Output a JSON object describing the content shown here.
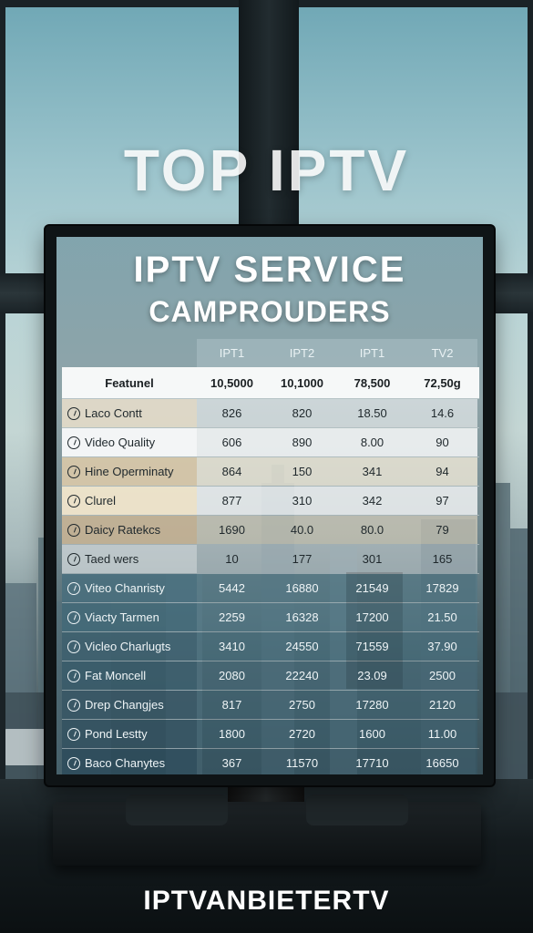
{
  "headline": "TOP IPTV",
  "screen_title_1": "IPTV SERVICE",
  "screen_title_2": "CAMPROUDERS",
  "table": {
    "columns": [
      "",
      "IPT1",
      "IPT2",
      "IPT1",
      "TV2"
    ],
    "subheader": [
      "Featunel",
      "10,5000",
      "10,1000",
      "78,500",
      "72,50g"
    ],
    "rows": [
      {
        "label": "Laco Contt",
        "values": [
          "826",
          "820",
          "18.50",
          "14.6"
        ]
      },
      {
        "label": "Video Quality",
        "values": [
          "606",
          "890",
          "8.00",
          "90"
        ]
      },
      {
        "label": "Hine Operminaty",
        "values": [
          "864",
          "150",
          "341",
          "94"
        ]
      },
      {
        "label": "Clurel",
        "values": [
          "877",
          "310",
          "342",
          "97"
        ]
      },
      {
        "label": "Daicy Ratekcs",
        "values": [
          "1690",
          "40.0",
          "80.0",
          "79"
        ]
      },
      {
        "label": "Taed wers",
        "values": [
          "10",
          "177",
          "301",
          "165"
        ]
      },
      {
        "label": "Viteo Chanristy",
        "values": [
          "5442",
          "16880",
          "21549",
          "17829"
        ]
      },
      {
        "label": "Viacty Tarmen",
        "values": [
          "2259",
          "16328",
          "17200",
          "21.50"
        ]
      },
      {
        "label": "Vicleo Charlugts",
        "values": [
          "3410",
          "24550",
          "71559",
          "37.90"
        ]
      },
      {
        "label": "Fat Moncell",
        "values": [
          "2080",
          "22240",
          "23.09",
          "2500"
        ]
      },
      {
        "label": "Drep Changjes",
        "values": [
          "817",
          "2750",
          "17280",
          "2120"
        ]
      },
      {
        "label": "Pond Lestty",
        "values": [
          "1800",
          "2720",
          "1600",
          "11.00"
        ]
      },
      {
        "label": "Baco Chanytes",
        "values": [
          "367",
          "11570",
          "17710",
          "16650"
        ]
      }
    ]
  },
  "brand": "IPTVANBIETERTV"
}
